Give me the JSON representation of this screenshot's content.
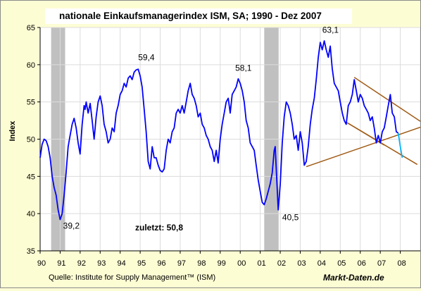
{
  "chart_data": {
    "type": "line",
    "title": "nationale Einkaufsmanagerindex ISM, SA; 1990 - Dez 2007",
    "xlabel": "",
    "ylabel": "Index",
    "ylim": [
      35,
      65
    ],
    "xlim": [
      1990,
      2009
    ],
    "y_ticks": [
      35,
      40,
      45,
      50,
      55,
      60,
      65
    ],
    "x_tick_labels": [
      "90",
      "91",
      "92",
      "93",
      "94",
      "95",
      "96",
      "97",
      "98",
      "99",
      "00",
      "01",
      "02",
      "03",
      "04",
      "05",
      "06",
      "07",
      "08"
    ],
    "grid": true,
    "line_color": "#0000ff",
    "last_segment_color": "#00b4ff",
    "recession_color": "#c0c0c0",
    "trend_color": "#a05a14",
    "recessions": [
      {
        "start": 1990.55,
        "end": 1991.25
      },
      {
        "start": 2001.2,
        "end": 2001.92
      }
    ],
    "series": [
      {
        "values": [
          [
            1990.0,
            47.5
          ],
          [
            1990.1,
            49.3
          ],
          [
            1990.2,
            50.0
          ],
          [
            1990.3,
            49.8
          ],
          [
            1990.4,
            49.0
          ],
          [
            1990.5,
            47.5
          ],
          [
            1990.6,
            45.0
          ],
          [
            1990.7,
            43.5
          ],
          [
            1990.8,
            42.5
          ],
          [
            1990.9,
            40.5
          ],
          [
            1991.0,
            39.2
          ],
          [
            1991.1,
            40.0
          ],
          [
            1991.2,
            42.5
          ],
          [
            1991.3,
            45.5
          ],
          [
            1991.4,
            49.0
          ],
          [
            1991.5,
            50.5
          ],
          [
            1991.6,
            52.0
          ],
          [
            1991.7,
            52.8
          ],
          [
            1991.8,
            51.5
          ],
          [
            1991.9,
            49.5
          ],
          [
            1992.0,
            48.0
          ],
          [
            1992.1,
            52.0
          ],
          [
            1992.2,
            54.5
          ],
          [
            1992.25,
            54.0
          ],
          [
            1992.3,
            55.0
          ],
          [
            1992.4,
            53.5
          ],
          [
            1992.5,
            54.8
          ],
          [
            1992.6,
            52.5
          ],
          [
            1992.7,
            50.0
          ],
          [
            1992.8,
            53.0
          ],
          [
            1992.9,
            55.0
          ],
          [
            1993.0,
            55.8
          ],
          [
            1993.1,
            54.5
          ],
          [
            1993.2,
            52.0
          ],
          [
            1993.3,
            51.0
          ],
          [
            1993.4,
            49.5
          ],
          [
            1993.5,
            50.0
          ],
          [
            1993.6,
            51.5
          ],
          [
            1993.7,
            51.0
          ],
          [
            1993.8,
            53.5
          ],
          [
            1993.9,
            54.5
          ],
          [
            1994.0,
            56.0
          ],
          [
            1994.1,
            56.5
          ],
          [
            1994.2,
            57.5
          ],
          [
            1994.3,
            57.0
          ],
          [
            1994.4,
            58.2
          ],
          [
            1994.5,
            58.5
          ],
          [
            1994.6,
            58.0
          ],
          [
            1994.7,
            59.0
          ],
          [
            1994.8,
            59.3
          ],
          [
            1994.9,
            59.4
          ],
          [
            1995.0,
            58.5
          ],
          [
            1995.1,
            57.0
          ],
          [
            1995.2,
            54.0
          ],
          [
            1995.3,
            51.0
          ],
          [
            1995.4,
            47.0
          ],
          [
            1995.5,
            46.0
          ],
          [
            1995.6,
            49.0
          ],
          [
            1995.7,
            47.5
          ],
          [
            1995.8,
            47.5
          ],
          [
            1995.9,
            46.5
          ],
          [
            1996.0,
            45.8
          ],
          [
            1996.1,
            45.6
          ],
          [
            1996.2,
            46.0
          ],
          [
            1996.3,
            48.5
          ],
          [
            1996.4,
            50.0
          ],
          [
            1996.5,
            49.5
          ],
          [
            1996.6,
            51.0
          ],
          [
            1996.7,
            51.5
          ],
          [
            1996.8,
            53.5
          ],
          [
            1996.9,
            54.0
          ],
          [
            1997.0,
            53.5
          ],
          [
            1997.1,
            54.5
          ],
          [
            1997.2,
            53.5
          ],
          [
            1997.3,
            55.0
          ],
          [
            1997.4,
            56.5
          ],
          [
            1997.5,
            57.5
          ],
          [
            1997.6,
            56.0
          ],
          [
            1997.7,
            55.5
          ],
          [
            1997.8,
            54.5
          ],
          [
            1997.9,
            53.0
          ],
          [
            1998.0,
            53.5
          ],
          [
            1998.1,
            52.0
          ],
          [
            1998.2,
            51.5
          ],
          [
            1998.3,
            50.5
          ],
          [
            1998.4,
            50.0
          ],
          [
            1998.5,
            49.0
          ],
          [
            1998.6,
            48.5
          ],
          [
            1998.7,
            47.0
          ],
          [
            1998.8,
            48.5
          ],
          [
            1998.9,
            46.8
          ],
          [
            1999.0,
            50.0
          ],
          [
            1999.1,
            52.0
          ],
          [
            1999.2,
            53.5
          ],
          [
            1999.3,
            55.0
          ],
          [
            1999.4,
            55.5
          ],
          [
            1999.5,
            53.5
          ],
          [
            1999.6,
            56.0
          ],
          [
            1999.7,
            56.5
          ],
          [
            1999.8,
            57.0
          ],
          [
            1999.9,
            58.1
          ],
          [
            2000.0,
            57.5
          ],
          [
            2000.1,
            56.5
          ],
          [
            2000.2,
            55.0
          ],
          [
            2000.3,
            52.5
          ],
          [
            2000.4,
            51.5
          ],
          [
            2000.5,
            49.5
          ],
          [
            2000.6,
            49.0
          ],
          [
            2000.7,
            48.5
          ],
          [
            2000.8,
            46.5
          ],
          [
            2000.9,
            44.5
          ],
          [
            2001.0,
            43.0
          ],
          [
            2001.1,
            41.5
          ],
          [
            2001.2,
            41.2
          ],
          [
            2001.3,
            42.0
          ],
          [
            2001.4,
            43.0
          ],
          [
            2001.5,
            44.0
          ],
          [
            2001.6,
            45.5
          ],
          [
            2001.7,
            48.5
          ],
          [
            2001.75,
            49.0
          ],
          [
            2001.8,
            46.0
          ],
          [
            2001.9,
            40.5
          ],
          [
            2002.0,
            44.0
          ],
          [
            2002.1,
            49.5
          ],
          [
            2002.2,
            53.0
          ],
          [
            2002.3,
            55.0
          ],
          [
            2002.4,
            54.5
          ],
          [
            2002.5,
            53.5
          ],
          [
            2002.6,
            52.0
          ],
          [
            2002.7,
            50.0
          ],
          [
            2002.8,
            50.5
          ],
          [
            2002.9,
            48.5
          ],
          [
            2003.0,
            51.0
          ],
          [
            2003.1,
            49.5
          ],
          [
            2003.2,
            46.5
          ],
          [
            2003.3,
            47.0
          ],
          [
            2003.4,
            49.0
          ],
          [
            2003.5,
            52.0
          ],
          [
            2003.6,
            54.0
          ],
          [
            2003.7,
            55.5
          ],
          [
            2003.8,
            58.0
          ],
          [
            2003.9,
            61.0
          ],
          [
            2004.0,
            63.0
          ],
          [
            2004.1,
            62.0
          ],
          [
            2004.2,
            63.2
          ],
          [
            2004.3,
            62.0
          ],
          [
            2004.4,
            61.0
          ],
          [
            2004.5,
            62.5
          ],
          [
            2004.6,
            59.5
          ],
          [
            2004.7,
            57.5
          ],
          [
            2004.8,
            57.0
          ],
          [
            2004.9,
            56.5
          ],
          [
            2005.0,
            55.0
          ],
          [
            2005.1,
            53.5
          ],
          [
            2005.2,
            52.5
          ],
          [
            2005.3,
            52.0
          ],
          [
            2005.4,
            54.5
          ],
          [
            2005.5,
            55.0
          ],
          [
            2005.6,
            56.0
          ],
          [
            2005.7,
            58.0
          ],
          [
            2005.8,
            56.5
          ],
          [
            2005.9,
            55.0
          ],
          [
            2006.0,
            56.0
          ],
          [
            2006.1,
            55.5
          ],
          [
            2006.2,
            54.5
          ],
          [
            2006.3,
            54.0
          ],
          [
            2006.4,
            53.5
          ],
          [
            2006.5,
            52.5
          ],
          [
            2006.6,
            53.0
          ],
          [
            2006.7,
            51.5
          ],
          [
            2006.8,
            49.5
          ],
          [
            2006.9,
            50.5
          ],
          [
            2007.0,
            49.5
          ],
          [
            2007.1,
            51.0
          ],
          [
            2007.2,
            51.5
          ],
          [
            2007.3,
            53.0
          ],
          [
            2007.4,
            54.5
          ],
          [
            2007.5,
            56.0
          ],
          [
            2007.6,
            53.5
          ],
          [
            2007.7,
            53.0
          ],
          [
            2007.8,
            51.0
          ],
          [
            2007.9,
            50.8
          ],
          [
            2008.0,
            49.0
          ],
          [
            2008.1,
            47.5
          ]
        ]
      }
    ],
    "last_segment_from": 2007.9,
    "trend_lines": [
      [
        [
          2005.35,
          52.2
        ],
        [
          2008.85,
          46.6
        ]
      ],
      [
        [
          2005.7,
          58.3
        ],
        [
          2009.0,
          52.4
        ]
      ],
      [
        [
          2003.3,
          46.3
        ],
        [
          2009.0,
          51.6
        ]
      ],
      [
        [
          2005.35,
          52.2
        ],
        [
          2007.2,
          49.2
        ]
      ]
    ],
    "annotations": [
      {
        "text": "39,2",
        "x": 1991.15,
        "y": 38.0
      },
      {
        "text": "59,4",
        "x": 1994.9,
        "y": 60.6
      },
      {
        "text": "58,1",
        "x": 1999.75,
        "y": 59.2
      },
      {
        "text": "40,5",
        "x": 2002.1,
        "y": 39.1
      },
      {
        "text": "63,1",
        "x": 2004.1,
        "y": 64.3
      }
    ],
    "note": "zuletzt: 50,8",
    "source": "Quelle: Institute for Supply Management™ (ISM)",
    "brand": "Markt-Daten.de"
  }
}
